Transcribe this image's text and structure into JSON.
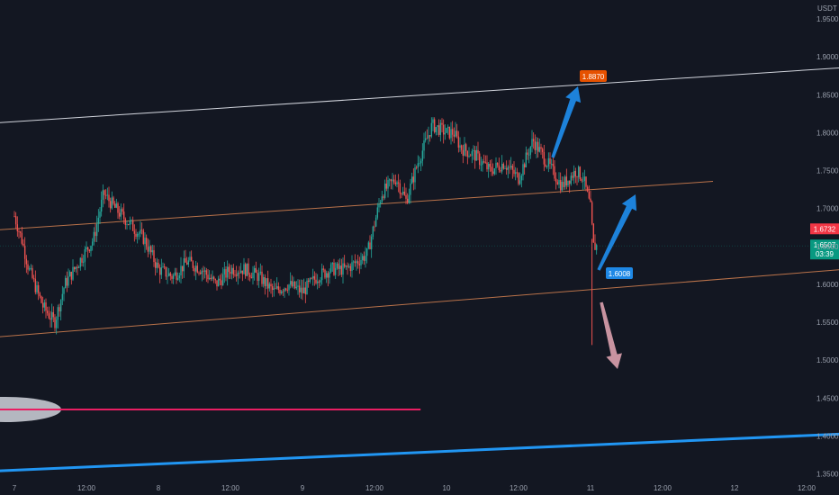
{
  "app": {
    "quote_currency": "USDT"
  },
  "colors": {
    "background": "#131722",
    "up": "#26a69a",
    "down": "#ef5350",
    "channel_upper": "#d1d4dc",
    "channel_mid": "#b9724a",
    "channel_lower": "#b9724a",
    "pink_line": "#e91e63",
    "blue_line": "#2196f3",
    "arrow_blue": "#1e88e5",
    "arrow_pink": "#d29aa8",
    "label_orange": "#e65100",
    "label_blue": "#1e88e5",
    "price_red": "#f23645",
    "price_green": "#089981"
  },
  "chart_data": {
    "type": "candlestick",
    "y_axis": {
      "min": 1.34,
      "max": 1.975,
      "ticks": [
        "1.9500",
        "1.9000",
        "1.8500",
        "1.8000",
        "1.7500",
        "1.7000",
        "1.6500",
        "1.6000",
        "1.5500",
        "1.5000",
        "1.4500",
        "1.4000",
        "1.3500"
      ],
      "position": "right"
    },
    "x_axis": {
      "ticks": [
        {
          "label": "7",
          "t": 0
        },
        {
          "label": "12:00",
          "t": 0.5
        },
        {
          "label": "8",
          "t": 1
        },
        {
          "label": "12:00",
          "t": 1.5
        },
        {
          "label": "9",
          "t": 2
        },
        {
          "label": "12:00",
          "t": 2.5
        },
        {
          "label": "10",
          "t": 3
        },
        {
          "label": "12:00",
          "t": 3.5
        },
        {
          "label": "11",
          "t": 4
        },
        {
          "label": "12:00",
          "t": 4.5
        },
        {
          "label": "12",
          "t": 5
        },
        {
          "label": "12:00",
          "t": 5.5
        }
      ]
    },
    "price_path": [
      [
        0,
        1.69
      ],
      [
        0.05,
        1.66
      ],
      [
        0.1,
        1.62
      ],
      [
        0.2,
        1.57
      ],
      [
        0.28,
        1.55
      ],
      [
        0.35,
        1.6
      ],
      [
        0.45,
        1.63
      ],
      [
        0.55,
        1.66
      ],
      [
        0.62,
        1.72
      ],
      [
        0.7,
        1.7
      ],
      [
        0.8,
        1.68
      ],
      [
        0.9,
        1.66
      ],
      [
        1.0,
        1.62
      ],
      [
        1.1,
        1.61
      ],
      [
        1.2,
        1.63
      ],
      [
        1.3,
        1.62
      ],
      [
        1.4,
        1.6
      ],
      [
        1.5,
        1.62
      ],
      [
        1.6,
        1.62
      ],
      [
        1.7,
        1.61
      ],
      [
        1.8,
        1.59
      ],
      [
        1.9,
        1.6
      ],
      [
        2.0,
        1.59
      ],
      [
        2.1,
        1.61
      ],
      [
        2.2,
        1.62
      ],
      [
        2.3,
        1.62
      ],
      [
        2.38,
        1.63
      ],
      [
        2.45,
        1.64
      ],
      [
        2.55,
        1.72
      ],
      [
        2.65,
        1.74
      ],
      [
        2.72,
        1.71
      ],
      [
        2.8,
        1.76
      ],
      [
        2.9,
        1.81
      ],
      [
        3.0,
        1.8
      ],
      [
        3.05,
        1.8
      ],
      [
        3.1,
        1.78
      ],
      [
        3.2,
        1.77
      ],
      [
        3.3,
        1.75
      ],
      [
        3.4,
        1.76
      ],
      [
        3.5,
        1.74
      ],
      [
        3.6,
        1.79
      ],
      [
        3.7,
        1.76
      ],
      [
        3.8,
        1.73
      ],
      [
        3.9,
        1.75
      ],
      [
        3.95,
        1.74
      ],
      [
        4.0,
        1.7
      ],
      [
        4.02,
        1.65
      ],
      [
        4.05,
        1.6507
      ]
    ],
    "wick_low": {
      "t": 4.01,
      "price": 1.52
    },
    "channel": {
      "upper": {
        "p0": {
          "t": -0.25,
          "price": 1.8115
        },
        "p1": {
          "t": 5.75,
          "price": 1.8857
        }
      },
      "mid": {
        "p0": {
          "t": -0.25,
          "price": 1.6701
        },
        "p1": {
          "t": 4.85,
          "price": 1.7358
        }
      },
      "lower": {
        "p0": {
          "t": -0.25,
          "price": 1.5287
        },
        "p1": {
          "t": 5.75,
          "price": 1.6196
        }
      }
    },
    "horizontal_pink": {
      "price": 1.435,
      "t_start": -0.25,
      "t_end": 2.82
    },
    "trend_blue": {
      "p0": {
        "t": -0.25,
        "price": 1.3528
      },
      "p1": {
        "t": 5.75,
        "price": 1.4027
      }
    },
    "annotations": {
      "orange_label": {
        "text": "1.8870",
        "t": 4.1,
        "price": 1.887
      },
      "blue_label": {
        "text": "1.6008",
        "t": 4.3,
        "price": 1.6008
      }
    },
    "price_labels": {
      "red": {
        "text": "1.6732",
        "price": 1.6732
      },
      "green": {
        "text": "1.6507",
        "price": 1.6507,
        "timer": "03:39"
      }
    },
    "grid": false,
    "legend": "none"
  }
}
